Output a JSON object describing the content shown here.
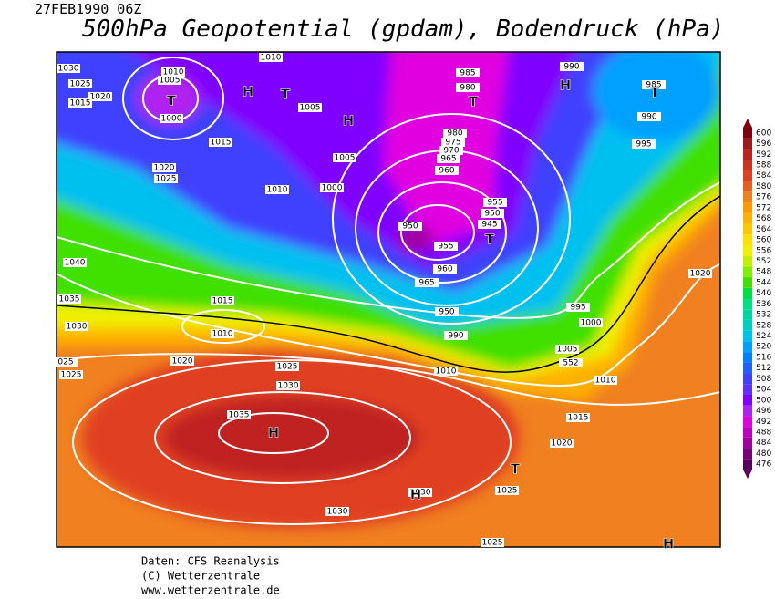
{
  "header": {
    "date": "27FEB1990 06Z",
    "title": "500hPa Geopotential (gpdam), Bodendruck (hPa)"
  },
  "legend": {
    "levels": [
      476,
      480,
      484,
      488,
      492,
      496,
      500,
      504,
      508,
      512,
      516,
      520,
      524,
      528,
      532,
      536,
      540,
      544,
      548,
      552,
      556,
      560,
      564,
      568,
      572,
      576,
      580,
      584,
      588,
      592,
      596,
      600
    ],
    "colors": [
      "#5a0060",
      "#7a0080",
      "#a000a0",
      "#c000c0",
      "#e000e0",
      "#b020f0",
      "#8000ff",
      "#6030ff",
      "#4040ff",
      "#2060ff",
      "#0080ff",
      "#00a0ff",
      "#00c0f0",
      "#00d0c0",
      "#00d8a0",
      "#00e080",
      "#00e040",
      "#40e000",
      "#80f000",
      "#c0f000",
      "#f0f000",
      "#ffe000",
      "#ffc800",
      "#ffb000",
      "#ff9800",
      "#f08020",
      "#e86020",
      "#e04020",
      "#d03020",
      "#c02020",
      "#a01818",
      "#800010"
    ]
  },
  "map": {
    "isobar_labels": [
      "1030",
      "1025",
      "1020",
      "1015",
      "1010",
      "1005",
      "1000",
      "1010",
      "1005",
      "1015",
      "1020",
      "1025",
      "1005",
      "1010",
      "1000",
      "985",
      "980",
      "990",
      "985",
      "990",
      "995",
      "980",
      "975",
      "970",
      "965",
      "960",
      "955",
      "950",
      "945",
      "950",
      "955",
      "960",
      "965",
      "950",
      "990",
      "1040",
      "1035",
      "1030",
      "1015",
      "1010",
      "1020",
      "025",
      "1025",
      "1025",
      "1030",
      "1035",
      "1010",
      "1005",
      "1000",
      "995",
      "1010",
      "1015",
      "1020",
      "1025",
      "1030",
      "1030",
      "1025",
      "1020",
      "552"
    ],
    "centers": [
      "T",
      "H",
      "T",
      "H",
      "T",
      "H",
      "T",
      "T",
      "H",
      "H",
      "T",
      "H"
    ]
  },
  "credits": [
    "Daten: CFS Reanalysis",
    "(C) Wetterzentrale",
    "www.wetterzentrale.de"
  ]
}
